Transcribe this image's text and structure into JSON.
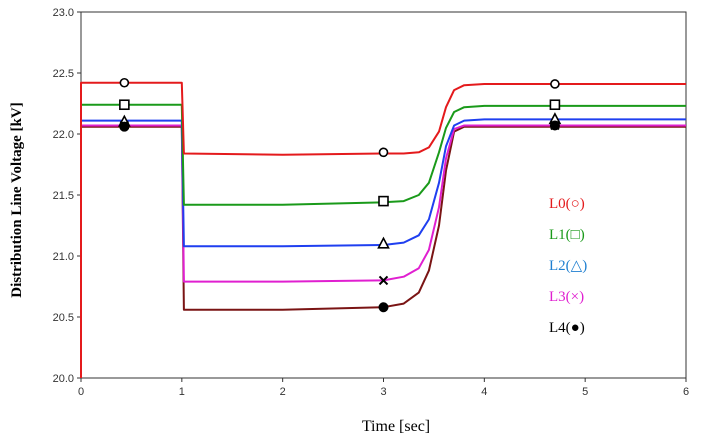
{
  "chart_data": {
    "type": "line",
    "title": "",
    "xlabel": "Time [sec]",
    "ylabel": "Distribution Line Voltage [kV]",
    "xlim": [
      0,
      6
    ],
    "ylim": [
      20.0,
      23.0
    ],
    "x_ticks": [
      "0",
      "1",
      "2",
      "3",
      "4",
      "5",
      "6"
    ],
    "y_ticks": [
      "20.0",
      "20.5",
      "21.0",
      "21.5",
      "22.0",
      "22.5",
      "23.0"
    ],
    "grid": false,
    "legend_position": "right",
    "series": [
      {
        "name": "L0(○)",
        "color": "#e41a1c",
        "marker": "circle-open",
        "points": [
          [
            0,
            22.42
          ],
          [
            1.0,
            22.42
          ],
          [
            1.02,
            21.84
          ],
          [
            2.0,
            21.83
          ],
          [
            3.0,
            21.84
          ],
          [
            3.2,
            21.84
          ],
          [
            3.35,
            21.85
          ],
          [
            3.45,
            21.89
          ],
          [
            3.55,
            22.02
          ],
          [
            3.62,
            22.22
          ],
          [
            3.7,
            22.36
          ],
          [
            3.8,
            22.4
          ],
          [
            4.0,
            22.41
          ],
          [
            6.0,
            22.41
          ]
        ],
        "marker_points": [
          [
            0.43,
            22.42
          ],
          [
            3.0,
            21.85
          ],
          [
            4.7,
            22.41
          ]
        ]
      },
      {
        "name": "L1(□)",
        "color": "#1a9a1a",
        "marker": "square-open",
        "points": [
          [
            0,
            22.24
          ],
          [
            1.0,
            22.24
          ],
          [
            1.02,
            21.42
          ],
          [
            2.0,
            21.42
          ],
          [
            3.0,
            21.44
          ],
          [
            3.2,
            21.45
          ],
          [
            3.35,
            21.5
          ],
          [
            3.45,
            21.6
          ],
          [
            3.55,
            21.85
          ],
          [
            3.62,
            22.05
          ],
          [
            3.7,
            22.18
          ],
          [
            3.8,
            22.22
          ],
          [
            4.0,
            22.23
          ],
          [
            6.0,
            22.23
          ]
        ],
        "marker_points": [
          [
            0.43,
            22.24
          ],
          [
            3.0,
            21.45
          ],
          [
            4.7,
            22.24
          ]
        ]
      },
      {
        "name": "L2(△)",
        "color": "#1f3ff0",
        "marker": "triangle-open",
        "points": [
          [
            0,
            22.11
          ],
          [
            1.0,
            22.11
          ],
          [
            1.02,
            21.08
          ],
          [
            2.0,
            21.08
          ],
          [
            3.0,
            21.09
          ],
          [
            3.2,
            21.11
          ],
          [
            3.35,
            21.17
          ],
          [
            3.45,
            21.3
          ],
          [
            3.55,
            21.6
          ],
          [
            3.62,
            21.9
          ],
          [
            3.7,
            22.07
          ],
          [
            3.8,
            22.11
          ],
          [
            4.0,
            22.12
          ],
          [
            6.0,
            22.12
          ]
        ],
        "marker_points": [
          [
            0.43,
            22.1
          ],
          [
            3.0,
            21.1
          ],
          [
            4.7,
            22.12
          ]
        ]
      },
      {
        "name": "L3(×)",
        "color": "#e01fd0",
        "marker": "x",
        "points": [
          [
            0,
            22.07
          ],
          [
            1.0,
            22.07
          ],
          [
            1.02,
            20.79
          ],
          [
            2.0,
            20.79
          ],
          [
            3.0,
            20.8
          ],
          [
            3.2,
            20.83
          ],
          [
            3.35,
            20.9
          ],
          [
            3.45,
            21.05
          ],
          [
            3.55,
            21.4
          ],
          [
            3.62,
            21.8
          ],
          [
            3.7,
            22.04
          ],
          [
            3.8,
            22.07
          ],
          [
            4.0,
            22.07
          ],
          [
            6.0,
            22.07
          ]
        ],
        "marker_points": [
          [
            0.43,
            22.07
          ],
          [
            3.0,
            20.8
          ],
          [
            4.7,
            22.07
          ]
        ]
      },
      {
        "name": "L4(●)",
        "color": "#7a1414",
        "marker": "circle-filled",
        "points": [
          [
            0,
            22.06
          ],
          [
            1.0,
            22.06
          ],
          [
            1.02,
            20.56
          ],
          [
            2.0,
            20.56
          ],
          [
            3.0,
            20.58
          ],
          [
            3.2,
            20.61
          ],
          [
            3.35,
            20.7
          ],
          [
            3.45,
            20.88
          ],
          [
            3.55,
            21.25
          ],
          [
            3.62,
            21.7
          ],
          [
            3.7,
            22.02
          ],
          [
            3.8,
            22.06
          ],
          [
            4.0,
            22.06
          ],
          [
            6.0,
            22.06
          ]
        ],
        "marker_points": [
          [
            0.43,
            22.06
          ],
          [
            3.0,
            20.58
          ],
          [
            4.7,
            22.07
          ]
        ]
      }
    ]
  }
}
